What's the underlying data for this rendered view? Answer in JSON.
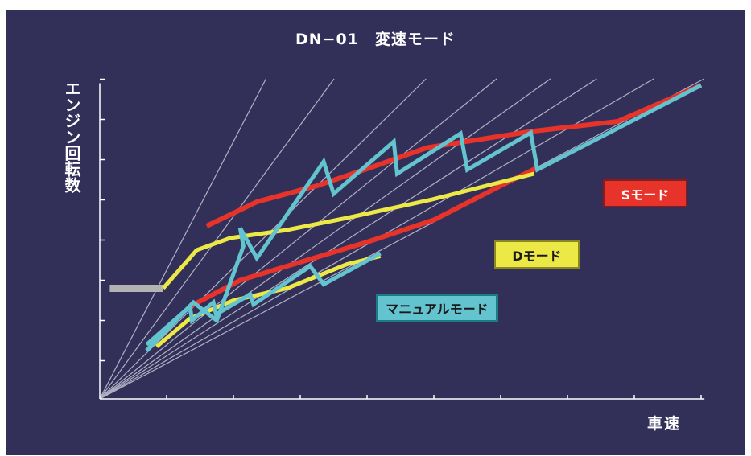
{
  "chart_data": {
    "type": "line",
    "title": "DN−01　変速モード",
    "xlabel": "車速",
    "ylabel": "エンジン回転数",
    "xlim": [
      0,
      9
    ],
    "ylim": [
      0,
      8
    ],
    "grid": false,
    "legend_labels": {
      "s_mode": "Sモード",
      "d_mode": "Dモード",
      "manual_mode": "マニュアルモード"
    },
    "colors": {
      "background": "#323059",
      "s_mode": "#e8332a",
      "d_mode": "#ece845",
      "manual_mode": "#63c3cf",
      "idle": "#b3b3b3",
      "ratio_lines": "#b0b0c4",
      "axis": "#ffffff"
    },
    "ratio_line_slopes": [
      3.2,
      2.27,
      1.63,
      1.34,
      1.18,
      1.07,
      0.96,
      0.88
    ],
    "series": [
      {
        "id": "idle",
        "points": [
          [
            0.15,
            2.75
          ],
          [
            0.95,
            2.75
          ]
        ]
      },
      {
        "id": "manual_mode",
        "points": [
          [
            0.7,
            1.2
          ],
          [
            1.4,
            2.4
          ],
          [
            1.75,
            1.95
          ],
          [
            2.15,
            3.8
          ],
          [
            2.1,
            4.25
          ],
          [
            2.35,
            3.5
          ],
          [
            3.35,
            5.9
          ],
          [
            3.5,
            5.1
          ],
          [
            4.4,
            6.4
          ],
          [
            4.45,
            5.6
          ],
          [
            5.4,
            6.6
          ],
          [
            5.5,
            5.7
          ],
          [
            6.45,
            6.62
          ],
          [
            6.55,
            5.7
          ],
          [
            9.0,
            7.8
          ]
        ]
      },
      {
        "id": "manual_low",
        "points": [
          [
            0.7,
            1.35
          ],
          [
            1.35,
            2.3
          ],
          [
            1.38,
            1.95
          ],
          [
            1.7,
            2.4
          ],
          [
            1.74,
            2.1
          ],
          [
            2.25,
            2.6
          ],
          [
            2.3,
            2.35
          ],
          [
            3.15,
            3.3
          ],
          [
            3.35,
            2.85
          ],
          [
            4.2,
            3.62
          ]
        ]
      },
      {
        "id": "s_mode",
        "points": [
          [
            1.6,
            4.3
          ],
          [
            2.35,
            4.9
          ],
          [
            3.25,
            5.3
          ],
          [
            4.05,
            5.75
          ],
          [
            4.9,
            6.25
          ],
          [
            6.45,
            6.65
          ],
          [
            7.75,
            6.9
          ],
          [
            9.0,
            7.8
          ]
        ]
      },
      {
        "id": "s_low",
        "points": [
          [
            1.35,
            2.3
          ],
          [
            2.1,
            2.95
          ],
          [
            3.1,
            3.45
          ],
          [
            4.0,
            3.9
          ],
          [
            5.0,
            4.45
          ],
          [
            6.0,
            5.3
          ],
          [
            6.55,
            5.75
          ]
        ]
      },
      {
        "id": "d_mode",
        "points": [
          [
            0.95,
            2.75
          ],
          [
            1.45,
            3.7
          ],
          [
            1.95,
            4.0
          ],
          [
            2.8,
            4.2
          ],
          [
            3.7,
            4.5
          ],
          [
            4.95,
            4.95
          ],
          [
            6.5,
            5.6
          ]
        ]
      },
      {
        "id": "d_low",
        "points": [
          [
            0.85,
            1.3
          ],
          [
            1.35,
            2.0
          ],
          [
            2.0,
            2.45
          ],
          [
            2.8,
            2.75
          ],
          [
            3.7,
            3.35
          ],
          [
            4.2,
            3.55
          ]
        ]
      }
    ]
  }
}
